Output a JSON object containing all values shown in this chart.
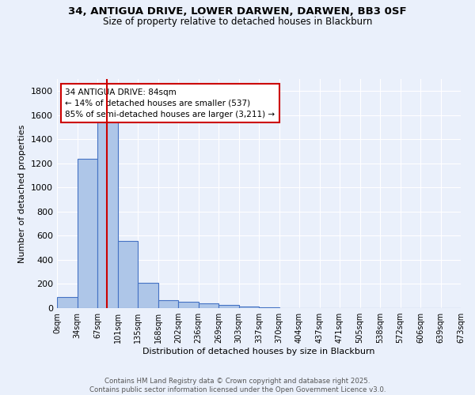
{
  "title_line1": "34, ANTIGUA DRIVE, LOWER DARWEN, DARWEN, BB3 0SF",
  "title_line2": "Size of property relative to detached houses in Blackburn",
  "xlabel": "Distribution of detached houses by size in Blackburn",
  "ylabel": "Number of detached properties",
  "bin_labels": [
    "0sqm",
    "34sqm",
    "67sqm",
    "101sqm",
    "135sqm",
    "168sqm",
    "202sqm",
    "236sqm",
    "269sqm",
    "303sqm",
    "337sqm",
    "370sqm",
    "404sqm",
    "437sqm",
    "471sqm",
    "505sqm",
    "538sqm",
    "572sqm",
    "606sqm",
    "639sqm",
    "673sqm"
  ],
  "bar_heights": [
    90,
    1240,
    1620,
    560,
    210,
    65,
    50,
    40,
    25,
    15,
    5,
    2,
    0,
    0,
    0,
    0,
    0,
    0,
    0,
    0
  ],
  "bar_color": "#aec6e8",
  "bar_edge_color": "#4472c4",
  "ylim": [
    0,
    1900
  ],
  "yticks": [
    0,
    200,
    400,
    600,
    800,
    1000,
    1200,
    1400,
    1600,
    1800
  ],
  "red_line_x": 2.47,
  "annotation_title": "34 ANTIGUA DRIVE: 84sqm",
  "annotation_line1": "← 14% of detached houses are smaller (537)",
  "annotation_line2": "85% of semi-detached houses are larger (3,211) →",
  "annotation_box_color": "#ffffff",
  "annotation_box_edge": "#cc0000",
  "footer_line1": "Contains HM Land Registry data © Crown copyright and database right 2025.",
  "footer_line2": "Contains public sector information licensed under the Open Government Licence v3.0.",
  "bg_color": "#eaf0fb",
  "plot_bg_color": "#eaf0fb",
  "grid_color": "#ffffff"
}
